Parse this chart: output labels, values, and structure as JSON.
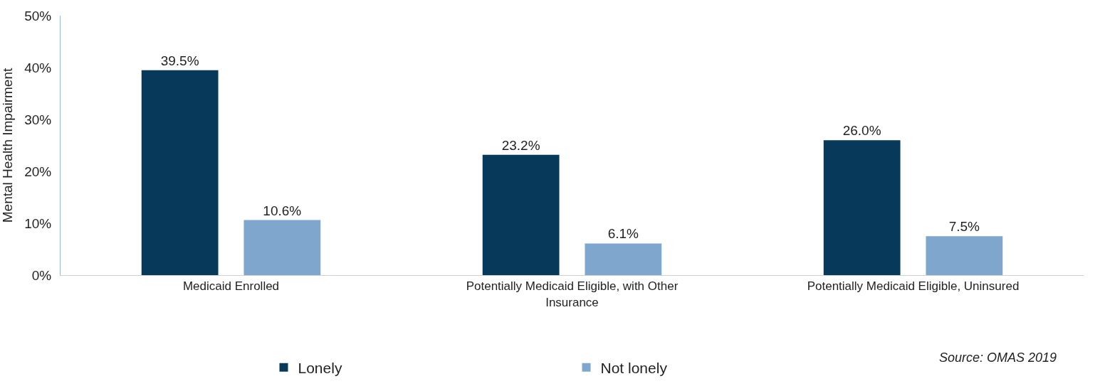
{
  "chart_data": {
    "type": "bar",
    "ylabel": "Mental Health Impairment",
    "categories": [
      "Medicaid Enrolled",
      "Potentially Medicaid Eligible, with Other Insurance",
      "Potentially Medicaid Eligible, Uninsured"
    ],
    "series": [
      {
        "name": "Lonely",
        "color": "#06395a",
        "values": [
          39.5,
          23.2,
          26.0
        ],
        "value_labels": [
          "39.5%",
          "23.2%",
          "26.0%"
        ]
      },
      {
        "name": "Not lonely",
        "color": "#7fa6cd",
        "values": [
          10.6,
          6.1,
          7.5
        ],
        "value_labels": [
          "10.6%",
          "6.1%",
          "7.5%"
        ]
      }
    ],
    "ylim": [
      0,
      50
    ],
    "yticks": [
      {
        "value": 0,
        "label": "0%"
      },
      {
        "value": 10,
        "label": "10%"
      },
      {
        "value": 20,
        "label": "20%"
      },
      {
        "value": 30,
        "label": "30%"
      },
      {
        "value": 40,
        "label": "40%"
      },
      {
        "value": 50,
        "label": "50%"
      }
    ],
    "grid": false,
    "legend": "bottom",
    "annotations": [
      "Source: OMAS 2019"
    ]
  }
}
